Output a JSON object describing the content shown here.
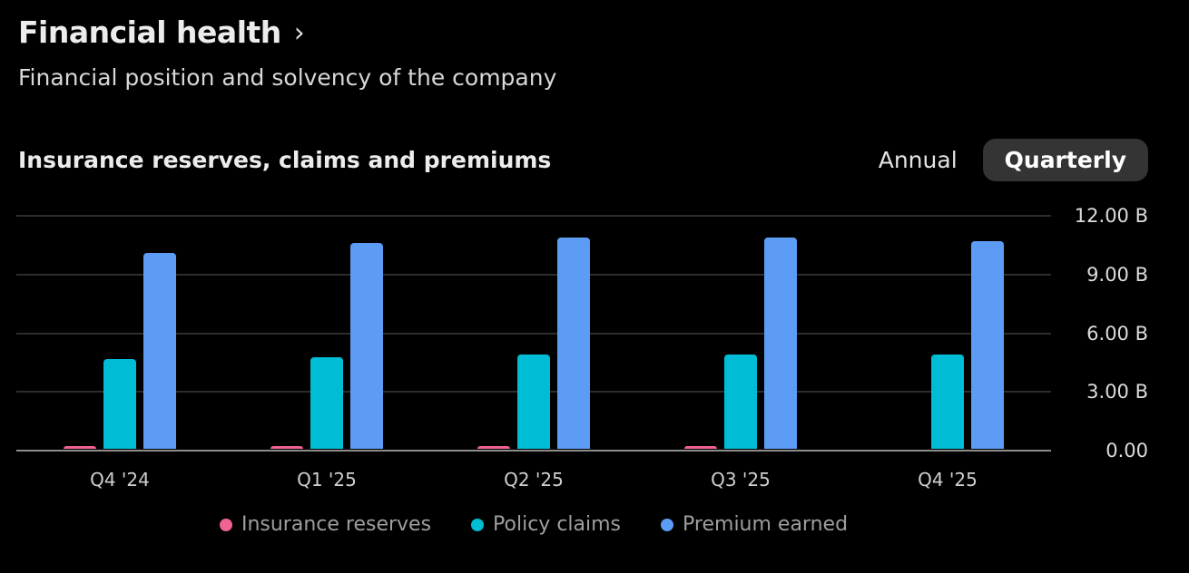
{
  "page": {
    "title": "Financial health",
    "title_chevron": "›",
    "subtitle": "Financial position and solvency of the company"
  },
  "section": {
    "title": "Insurance reserves, claims and premiums",
    "toggle": {
      "annual_label": "Annual",
      "quarterly_label": "Quarterly",
      "selected": "Quarterly"
    }
  },
  "chart_data": {
    "type": "bar",
    "title": "Insurance reserves, claims and premiums",
    "categories": [
      "Q4 '24",
      "Q1 '25",
      "Q2 '25",
      "Q3 '25",
      "Q4 '25"
    ],
    "series": [
      {
        "name": "Insurance reserves",
        "color": "#f06292",
        "values": [
          0.1,
          0.1,
          0.1,
          0.1,
          0
        ]
      },
      {
        "name": "Policy claims",
        "color": "#00bcd4",
        "values": [
          4.6,
          4.7,
          4.8,
          4.8,
          4.8
        ]
      },
      {
        "name": "Premium earned",
        "color": "#5c9cf5",
        "values": [
          10.0,
          10.5,
          10.8,
          10.8,
          10.6
        ]
      }
    ],
    "unit": "B",
    "ylim": [
      0,
      12
    ],
    "yticks": [
      {
        "value": 12,
        "label": "12.00 B"
      },
      {
        "value": 9,
        "label": "9.00 B"
      },
      {
        "value": 6,
        "label": "6.00 B"
      },
      {
        "value": 3,
        "label": "3.00 B"
      },
      {
        "value": 0,
        "label": "0.00"
      }
    ],
    "grid": true,
    "legend_position": "bottom"
  },
  "colors": {
    "background": "#000000",
    "gridline": "#2d2d2d",
    "baseline": "#8d8d8d",
    "selected_toggle_bg": "#343434",
    "legend_text": "#9e9e9e"
  }
}
